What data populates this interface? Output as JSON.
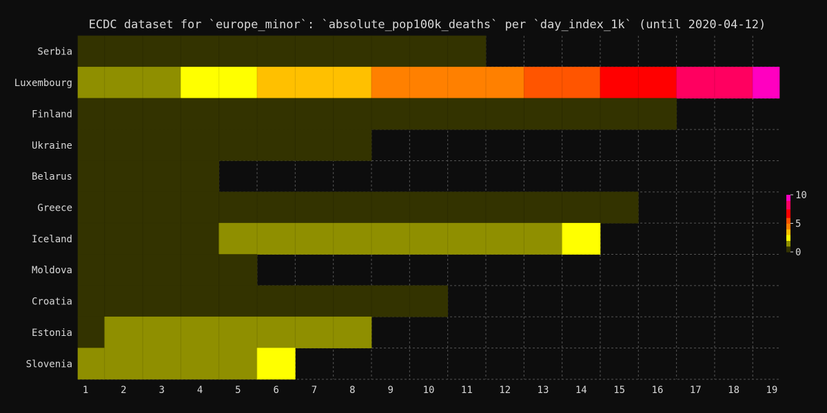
{
  "chart_data": {
    "type": "heatmap",
    "title": "ECDC dataset for `europe_minor`: `absolute_pop100k_deaths` per `day_index_1k` (until 2020-04-12)",
    "x_ticks": [
      1,
      2,
      3,
      4,
      5,
      6,
      7,
      8,
      9,
      10,
      11,
      12,
      13,
      14,
      15,
      16,
      17,
      18,
      19
    ],
    "xlim": [
      0.8,
      19.2
    ],
    "grid": true,
    "colorbar": {
      "min": 0,
      "max": 10,
      "ticks": [
        0,
        5,
        10
      ],
      "placement": "right"
    },
    "colors": {
      "background": "#0d0d0d",
      "text": "#d8d8d8",
      "scale": [
        "#333300",
        "#8f8f00",
        "#ffff00",
        "#ffc000",
        "#ff8000",
        "#ff5500",
        "#ff0000",
        "#ff0060",
        "#ff00c0"
      ]
    },
    "rows": [
      {
        "label": "Serbia",
        "start": 0.8,
        "values": [
          0,
          0,
          0,
          0,
          0,
          0,
          0,
          0,
          0,
          0,
          0
        ]
      },
      {
        "label": "Luxembourg",
        "start": 0.8,
        "values": [
          1.6,
          1.6,
          1.6,
          2.5,
          2.5,
          3.3,
          3.3,
          3.3,
          4.2,
          4.2,
          4.2,
          4.2,
          5.0,
          5.0,
          6.2,
          6.2,
          7.6,
          7.6,
          9.2
        ]
      },
      {
        "label": "Finland",
        "start": 0.8,
        "values": [
          0,
          0,
          0,
          0,
          0,
          0,
          0,
          0,
          0,
          0,
          0,
          0,
          0,
          0,
          0,
          0
        ]
      },
      {
        "label": "Ukraine",
        "start": 0.8,
        "values": [
          0,
          0,
          0,
          0,
          0,
          0,
          0,
          0
        ]
      },
      {
        "label": "Belarus",
        "start": 0.8,
        "values": [
          0,
          0,
          0,
          0
        ]
      },
      {
        "label": "Greece",
        "start": 0.8,
        "values": [
          0,
          0,
          0,
          0,
          0,
          0,
          0,
          0,
          0,
          0,
          0,
          0,
          0,
          0,
          0
        ]
      },
      {
        "label": "Iceland",
        "start": 0.8,
        "values": [
          0,
          0,
          0,
          0,
          1.5,
          1.5,
          1.5,
          1.5,
          1.5,
          1.5,
          1.5,
          1.5,
          1.5,
          2.5
        ]
      },
      {
        "label": "Moldova",
        "start": 0.8,
        "values": [
          0,
          0,
          0,
          0,
          0
        ]
      },
      {
        "label": "Croatia",
        "start": 0.8,
        "values": [
          0,
          0,
          0,
          0,
          0,
          0,
          0,
          0,
          0,
          0
        ]
      },
      {
        "label": "Estonia",
        "start": 0.8,
        "values": [
          0,
          1.0,
          1.0,
          1.0,
          1.0,
          1.0,
          1.0,
          1.0
        ]
      },
      {
        "label": "Slovenia",
        "start": 0.8,
        "values": [
          1.0,
          1.0,
          1.0,
          1.0,
          1.0,
          2.5
        ]
      }
    ]
  }
}
